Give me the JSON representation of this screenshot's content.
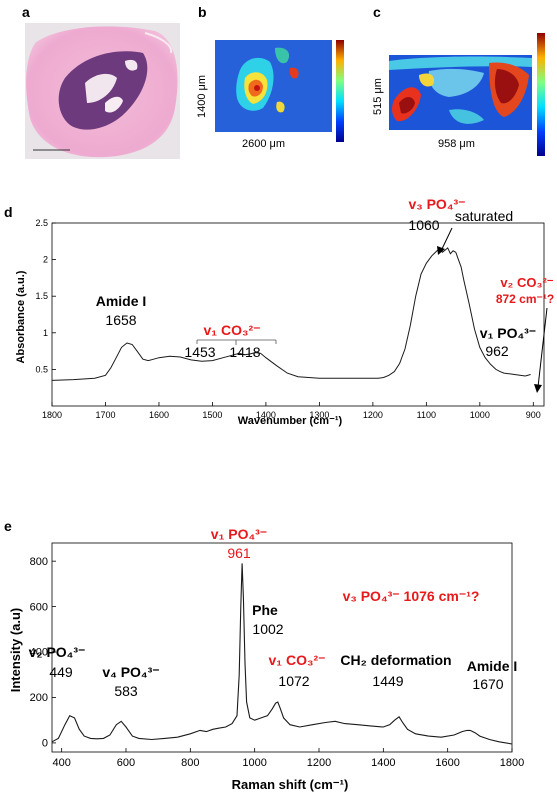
{
  "panels": {
    "a": {
      "letter": "a"
    },
    "b": {
      "letter": "b",
      "width_label": "2600 μm",
      "height_label": "1400 μm"
    },
    "c": {
      "letter": "c",
      "width_label": "958 μm",
      "height_label": "515 μm"
    },
    "d": {
      "letter": "d"
    },
    "e": {
      "letter": "e"
    }
  },
  "colors": {
    "annotation_red": "#e8191b",
    "line": "#1a1a1a"
  },
  "chart_data": [
    {
      "type": "line",
      "panel": "d",
      "xlabel": "Wavenumber (cm⁻¹)",
      "ylabel": "Absorbance (a.u.)",
      "xlim": [
        1800,
        880
      ],
      "ylim": [
        0,
        2.5
      ],
      "x_reversed": true,
      "xticks": [
        1800,
        1700,
        1600,
        1500,
        1400,
        1300,
        1200,
        1100,
        1000,
        900
      ],
      "yticks": [
        0.5,
        1,
        1.5,
        2,
        2.5
      ],
      "series": [
        {
          "x": [
            1800,
            1760,
            1720,
            1700,
            1690,
            1680,
            1670,
            1660,
            1650,
            1640,
            1630,
            1620,
            1610,
            1600,
            1580,
            1560,
            1540,
            1520,
            1500,
            1480,
            1460,
            1450,
            1440,
            1430,
            1420,
            1410,
            1400,
            1380,
            1360,
            1340,
            1320,
            1300,
            1280,
            1260,
            1240,
            1220,
            1200,
            1190,
            1180,
            1170,
            1160,
            1150,
            1140,
            1130,
            1120,
            1110,
            1100,
            1090,
            1080,
            1075,
            1070,
            1065,
            1060,
            1055,
            1050,
            1045,
            1040,
            1035,
            1030,
            1020,
            1010,
            1000,
            990,
            980,
            970,
            962,
            955,
            945,
            935,
            925,
            915,
            905
          ],
          "y": [
            0.35,
            0.36,
            0.38,
            0.42,
            0.52,
            0.66,
            0.8,
            0.86,
            0.84,
            0.74,
            0.64,
            0.62,
            0.64,
            0.66,
            0.68,
            0.67,
            0.63,
            0.61,
            0.62,
            0.66,
            0.7,
            0.72,
            0.7,
            0.71,
            0.73,
            0.72,
            0.66,
            0.55,
            0.45,
            0.4,
            0.39,
            0.38,
            0.38,
            0.38,
            0.38,
            0.38,
            0.38,
            0.38,
            0.39,
            0.42,
            0.47,
            0.58,
            0.78,
            1.1,
            1.5,
            1.8,
            1.95,
            2.05,
            2.12,
            2.15,
            2.1,
            2.13,
            2.16,
            2.08,
            2.12,
            2.1,
            2.0,
            1.9,
            1.72,
            1.4,
            1.05,
            0.8,
            0.66,
            0.57,
            0.5,
            0.47,
            0.45,
            0.44,
            0.43,
            0.42,
            0.41,
            0.43
          ]
        }
      ],
      "annotations": [
        {
          "label": "Amide I",
          "value": "1658"
        },
        {
          "label": "v₁ CO₃²⁻",
          "values": [
            "1453",
            "1418"
          ]
        },
        {
          "label": "v₃ PO₄³⁻",
          "value": "1060",
          "note": "saturated"
        },
        {
          "label": "v₁ PO₄³⁻",
          "value": "962"
        },
        {
          "label": "v₂ CO₃²⁻",
          "value": "872 cm⁻¹?"
        }
      ]
    },
    {
      "type": "line",
      "panel": "e",
      "xlabel": "Raman shift (cm⁻¹)",
      "ylabel": "Intensity (a.u)",
      "xlim": [
        370,
        1800
      ],
      "ylim": [
        -40,
        880
      ],
      "xticks": [
        400,
        600,
        800,
        1000,
        1200,
        1400,
        1600,
        1800
      ],
      "yticks": [
        0,
        200,
        400,
        600,
        800
      ],
      "series": [
        {
          "x": [
            370,
            390,
            410,
            425,
            440,
            455,
            470,
            490,
            510,
            530,
            550,
            570,
            585,
            600,
            620,
            640,
            680,
            720,
            760,
            800,
            830,
            850,
            870,
            890,
            910,
            930,
            945,
            952,
            957,
            961,
            965,
            970,
            975,
            985,
            1000,
            1020,
            1040,
            1055,
            1065,
            1072,
            1080,
            1090,
            1110,
            1140,
            1180,
            1220,
            1250,
            1280,
            1320,
            1360,
            1400,
            1420,
            1435,
            1449,
            1460,
            1475,
            1500,
            1540,
            1580,
            1620,
            1645,
            1660,
            1670,
            1685,
            1700,
            1730,
            1760,
            1800
          ],
          "y": [
            5,
            20,
            80,
            120,
            110,
            60,
            30,
            20,
            18,
            20,
            35,
            80,
            95,
            70,
            30,
            20,
            15,
            20,
            25,
            40,
            55,
            50,
            60,
            65,
            70,
            85,
            120,
            300,
            600,
            790,
            640,
            350,
            180,
            110,
            100,
            110,
            120,
            150,
            175,
            180,
            150,
            110,
            80,
            70,
            80,
            90,
            95,
            85,
            80,
            75,
            70,
            80,
            100,
            115,
            90,
            60,
            40,
            30,
            25,
            35,
            50,
            55,
            55,
            45,
            30,
            15,
            5,
            -5
          ]
        }
      ],
      "annotations": [
        {
          "label": "v₁ PO₄³⁻",
          "value": "961"
        },
        {
          "label": "Phe",
          "value": "1002"
        },
        {
          "label": "v₁ CO₃²⁻",
          "value": "1072"
        },
        {
          "label": "CH₂ deformation",
          "value": "1449"
        },
        {
          "label": "Amide I",
          "value": "1670"
        },
        {
          "label": "v₂ PO₄³⁻",
          "value": "449"
        },
        {
          "label": "v₄ PO₄³⁻",
          "value": "583"
        },
        {
          "label": "v₃ PO₄³⁻ 1076 cm⁻¹?"
        }
      ]
    }
  ]
}
